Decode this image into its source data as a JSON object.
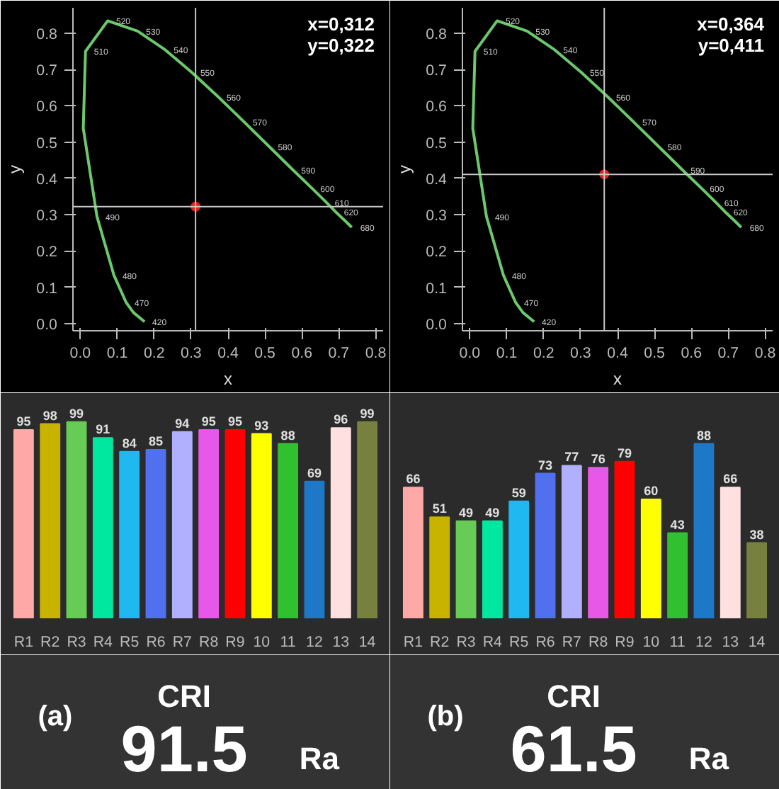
{
  "chart_data": [
    {
      "type": "scatter",
      "xlabel": "x",
      "ylabel": "y",
      "xlim": [
        -0.02,
        0.82
      ],
      "ylim": [
        -0.02,
        0.87
      ],
      "xticks": [
        {
          "value": 0,
          "label": "0.0"
        },
        0.1,
        0.2,
        0.3,
        0.4,
        0.5,
        0.6,
        0.7,
        0.8
      ],
      "yticks": [
        {
          "value": 0,
          "label": "0.0"
        },
        0.1,
        0.2,
        0.3,
        0.4,
        0.5,
        0.6,
        0.7,
        0.8
      ],
      "grid": false,
      "series": [
        {
          "type": "line",
          "marker": "none",
          "color": "#6cc86c",
          "x": [
            0.174,
            0.144,
            0.124,
            0.091,
            0.045,
            0.008,
            0.014,
            0.074,
            0.155,
            0.23,
            0.302,
            0.373,
            0.444,
            0.512,
            0.575,
            0.627,
            0.666,
            0.691,
            0.719,
            0.735
          ],
          "values": [
            0.005,
            0.03,
            0.058,
            0.133,
            0.295,
            0.538,
            0.75,
            0.834,
            0.806,
            0.754,
            0.692,
            0.625,
            0.555,
            0.487,
            0.424,
            0.373,
            0.334,
            0.308,
            0.281,
            0.265
          ]
        },
        {
          "type": "scatter",
          "marker": "circle",
          "color": "#e02020",
          "x": [
            0.312
          ],
          "values": [
            0.322
          ]
        }
      ],
      "ref_lines": [
        {
          "axis": "x",
          "value": 0.312,
          "color": "#c8c8c8"
        },
        {
          "axis": "y",
          "value": 0.322,
          "color": "#c8c8c8"
        }
      ],
      "annotations": [
        "x=0,312",
        "y=0,322",
        {
          "text": "520",
          "x": 0.074,
          "y": 0.834
        },
        {
          "text": "530",
          "x": 0.155,
          "y": 0.806
        },
        {
          "text": "540",
          "x": 0.23,
          "y": 0.754
        },
        {
          "text": "550",
          "x": 0.302,
          "y": 0.692
        },
        {
          "text": "560",
          "x": 0.373,
          "y": 0.625
        },
        {
          "text": "570",
          "x": 0.444,
          "y": 0.555
        },
        {
          "text": "580",
          "x": 0.512,
          "y": 0.487
        },
        {
          "text": "590",
          "x": 0.575,
          "y": 0.424
        },
        {
          "text": "600",
          "x": 0.627,
          "y": 0.373
        },
        {
          "text": "610",
          "x": 0.666,
          "y": 0.334
        },
        {
          "text": "620",
          "x": 0.691,
          "y": 0.308
        },
        {
          "text": "680",
          "x": 0.735,
          "y": 0.265
        },
        {
          "text": "510",
          "x": 0.014,
          "y": 0.75
        },
        {
          "text": "490",
          "x": 0.045,
          "y": 0.295
        },
        {
          "text": "480",
          "x": 0.091,
          "y": 0.133
        },
        {
          "text": "470",
          "x": 0.124,
          "y": 0.058
        },
        {
          "text": "420",
          "x": 0.172,
          "y": 0.005
        }
      ]
    },
    {
      "type": "scatter",
      "xlabel": "x",
      "ylabel": "y",
      "xlim": [
        -0.02,
        0.82
      ],
      "ylim": [
        -0.02,
        0.87
      ],
      "xticks": [
        {
          "value": 0,
          "label": "0.0"
        },
        0.1,
        0.2,
        0.3,
        0.4,
        0.5,
        0.6,
        0.7,
        0.8
      ],
      "yticks": [
        {
          "value": 0,
          "label": "0.0"
        },
        0.1,
        0.2,
        0.3,
        0.4,
        0.5,
        0.6,
        0.7,
        0.8
      ],
      "grid": false,
      "series": [
        {
          "type": "line",
          "marker": "none",
          "color": "#6cc86c",
          "x": [
            0.174,
            0.144,
            0.124,
            0.091,
            0.045,
            0.008,
            0.014,
            0.074,
            0.155,
            0.23,
            0.302,
            0.373,
            0.444,
            0.512,
            0.575,
            0.627,
            0.666,
            0.691,
            0.719,
            0.735
          ],
          "values": [
            0.005,
            0.03,
            0.058,
            0.133,
            0.295,
            0.538,
            0.75,
            0.834,
            0.806,
            0.754,
            0.692,
            0.625,
            0.555,
            0.487,
            0.424,
            0.373,
            0.334,
            0.308,
            0.281,
            0.265
          ]
        },
        {
          "type": "scatter",
          "marker": "circle",
          "color": "#e02020",
          "x": [
            0.364
          ],
          "values": [
            0.411
          ]
        }
      ],
      "ref_lines": [
        {
          "axis": "x",
          "value": 0.364,
          "color": "#c8c8c8"
        },
        {
          "axis": "y",
          "value": 0.411,
          "color": "#c8c8c8"
        }
      ],
      "annotations": [
        "x=0,364",
        "y=0,411",
        {
          "text": "520",
          "x": 0.074,
          "y": 0.834
        },
        {
          "text": "530",
          "x": 0.155,
          "y": 0.806
        },
        {
          "text": "540",
          "x": 0.23,
          "y": 0.754
        },
        {
          "text": "550",
          "x": 0.302,
          "y": 0.692
        },
        {
          "text": "560",
          "x": 0.373,
          "y": 0.625
        },
        {
          "text": "570",
          "x": 0.444,
          "y": 0.555
        },
        {
          "text": "580",
          "x": 0.512,
          "y": 0.487
        },
        {
          "text": "590",
          "x": 0.575,
          "y": 0.424
        },
        {
          "text": "600",
          "x": 0.627,
          "y": 0.373
        },
        {
          "text": "610",
          "x": 0.666,
          "y": 0.334
        },
        {
          "text": "620",
          "x": 0.691,
          "y": 0.308
        },
        {
          "text": "680",
          "x": 0.735,
          "y": 0.265
        },
        {
          "text": "510",
          "x": 0.014,
          "y": 0.75
        },
        {
          "text": "490",
          "x": 0.045,
          "y": 0.295
        },
        {
          "text": "480",
          "x": 0.091,
          "y": 0.133
        },
        {
          "text": "470",
          "x": 0.124,
          "y": 0.058
        },
        {
          "text": "420",
          "x": 0.172,
          "y": 0.005
        }
      ]
    },
    {
      "type": "bar",
      "categories": [
        "R1",
        "R2",
        "R3",
        "R4",
        "R5",
        "R6",
        "R7",
        "R8",
        "R9",
        "10",
        "11",
        "12",
        "13",
        "14"
      ],
      "values": [
        95,
        98,
        99,
        91,
        84,
        85,
        94,
        95,
        95,
        93,
        88,
        69,
        96,
        99
      ],
      "colors": [
        "#ffa8a8",
        "#c8b400",
        "#66cc55",
        "#00e8a0",
        "#20b8f0",
        "#5070f0",
        "#b0b0ff",
        "#e858e8",
        "#ff0000",
        "#ffff00",
        "#30c030",
        "#1e78c8",
        "#ffe0e0",
        "#788040"
      ],
      "ylim": [
        0,
        110
      ],
      "tick_labels": "x",
      "data_labels": true,
      "grid": false
    },
    {
      "type": "bar",
      "categories": [
        "R1",
        "R2",
        "R3",
        "R4",
        "R5",
        "R6",
        "R7",
        "R8",
        "R9",
        "10",
        "11",
        "12",
        "13",
        "14"
      ],
      "values": [
        66,
        51,
        49,
        49,
        59,
        73,
        77,
        76,
        79,
        60,
        43,
        88,
        66,
        38
      ],
      "colors": [
        "#ffa8a8",
        "#c8b400",
        "#66cc55",
        "#00e8a0",
        "#20b8f0",
        "#5070f0",
        "#b0b0ff",
        "#e858e8",
        "#ff0000",
        "#ffff00",
        "#30c030",
        "#1e78c8",
        "#ffe0e0",
        "#788040"
      ],
      "ylim": [
        0,
        110
      ],
      "tick_labels": "x",
      "data_labels": true,
      "grid": false
    },
    {
      "type": "other",
      "annotations": [
        "(a)",
        "CRI",
        "91.5",
        "Ra"
      ]
    },
    {
      "type": "other",
      "annotations": [
        "(b)",
        "CRI",
        "61.5",
        "Ra"
      ]
    }
  ]
}
